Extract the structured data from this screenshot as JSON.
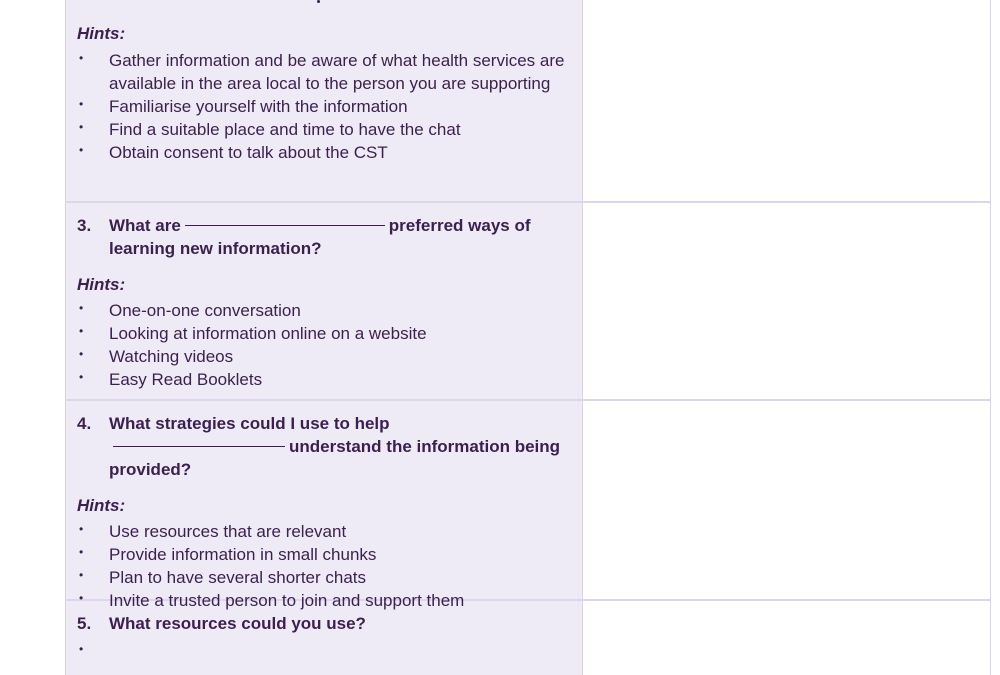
{
  "section_top": {
    "hints_label": "Hints:",
    "hints": [
      "Gather information and be aware of what health services are available in the area local to the person you are supporting",
      "Familiarise yourself with the information",
      "Find a suitable place and time to have the chat",
      "Obtain consent to talk about the CST"
    ]
  },
  "section_3": {
    "number": "3.",
    "question_start": "What are",
    "question_end": "preferred ways of learning new information?",
    "hints_label": "Hints:",
    "hints": [
      "One-on-one conversation",
      "Looking at information online on a website",
      "Watching videos",
      "Easy Read Booklets"
    ]
  },
  "section_4": {
    "number": "4.",
    "question_start": "What strategies could I use to help",
    "question_end": "understand the information being provided?",
    "hints_label": "Hints:",
    "hints": [
      "Use resources that are relevant",
      "Provide information in small chunks",
      "Plan to have several shorter chats",
      "Invite a trusted person to join and support them"
    ]
  },
  "section_5": {
    "number": "5.",
    "question_start": "What resources could you use?"
  }
}
